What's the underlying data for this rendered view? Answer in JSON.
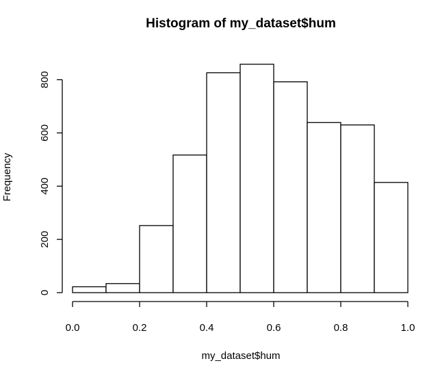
{
  "chart_data": {
    "type": "bar",
    "title": "Histogram of my_dataset$hum",
    "xlabel": "my_dataset$hum",
    "ylabel": "Frequency",
    "bins": [
      {
        "from": 0.0,
        "to": 0.1,
        "count": 22
      },
      {
        "from": 0.1,
        "to": 0.2,
        "count": 34
      },
      {
        "from": 0.2,
        "to": 0.3,
        "count": 252
      },
      {
        "from": 0.3,
        "to": 0.4,
        "count": 517
      },
      {
        "from": 0.4,
        "to": 0.5,
        "count": 826
      },
      {
        "from": 0.5,
        "to": 0.6,
        "count": 858
      },
      {
        "from": 0.6,
        "to": 0.7,
        "count": 792
      },
      {
        "from": 0.7,
        "to": 0.8,
        "count": 639
      },
      {
        "from": 0.8,
        "to": 0.9,
        "count": 630
      },
      {
        "from": 0.9,
        "to": 1.0,
        "count": 414
      }
    ],
    "xlim": [
      0.0,
      1.0
    ],
    "ylim": [
      0,
      858
    ],
    "x_ticks": [
      {
        "value": 0.0,
        "label": "0.0"
      },
      {
        "value": 0.2,
        "label": "0.2"
      },
      {
        "value": 0.4,
        "label": "0.4"
      },
      {
        "value": 0.6,
        "label": "0.6"
      },
      {
        "value": 0.8,
        "label": "0.8"
      },
      {
        "value": 1.0,
        "label": "1.0"
      }
    ],
    "y_ticks": [
      {
        "value": 0,
        "label": "0"
      },
      {
        "value": 200,
        "label": "200"
      },
      {
        "value": 400,
        "label": "400"
      },
      {
        "value": 600,
        "label": "600"
      },
      {
        "value": 800,
        "label": "800"
      }
    ],
    "grid": false,
    "colors": {
      "bar_fill": "#ffffff",
      "bar_stroke": "#000000",
      "axis": "#000000"
    }
  }
}
